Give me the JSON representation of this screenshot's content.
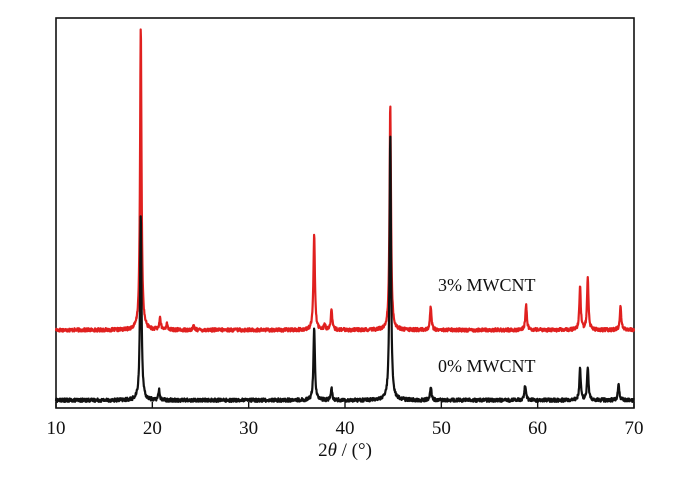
{
  "chart_data": {
    "type": "line",
    "xlabel_main": "2",
    "xlabel_symbol": "θ",
    "xlabel_unit": " / (°)",
    "xlim": [
      10,
      70
    ],
    "x_ticks": [
      10,
      20,
      30,
      40,
      50,
      60,
      70
    ],
    "x_tick_labels": [
      "10",
      "20",
      "30",
      "40",
      "50",
      "60",
      "70"
    ],
    "ylim": [
      0,
      100
    ],
    "grid": false,
    "series": [
      {
        "name": "3% MWCNT",
        "color": "#e0201f",
        "baseline": 20,
        "peaks": [
          {
            "x": 18.8,
            "h": 78
          },
          {
            "x": 20.8,
            "h": 3
          },
          {
            "x": 21.5,
            "h": 1.5
          },
          {
            "x": 24.3,
            "h": 1
          },
          {
            "x": 36.8,
            "h": 25
          },
          {
            "x": 37.9,
            "h": 1.5
          },
          {
            "x": 38.6,
            "h": 5
          },
          {
            "x": 44.7,
            "h": 58
          },
          {
            "x": 48.9,
            "h": 6
          },
          {
            "x": 58.8,
            "h": 6.5
          },
          {
            "x": 64.4,
            "h": 11
          },
          {
            "x": 65.2,
            "h": 13
          },
          {
            "x": 68.6,
            "h": 6
          }
        ]
      },
      {
        "name": "0% MWCNT",
        "color": "#111111",
        "baseline": 2,
        "peaks": [
          {
            "x": 18.8,
            "h": 48
          },
          {
            "x": 20.7,
            "h": 2.5
          },
          {
            "x": 36.8,
            "h": 19
          },
          {
            "x": 38.6,
            "h": 3
          },
          {
            "x": 44.7,
            "h": 68
          },
          {
            "x": 48.9,
            "h": 3.5
          },
          {
            "x": 58.7,
            "h": 4
          },
          {
            "x": 64.4,
            "h": 8
          },
          {
            "x": 65.2,
            "h": 8.5
          },
          {
            "x": 68.4,
            "h": 4
          }
        ]
      }
    ]
  }
}
